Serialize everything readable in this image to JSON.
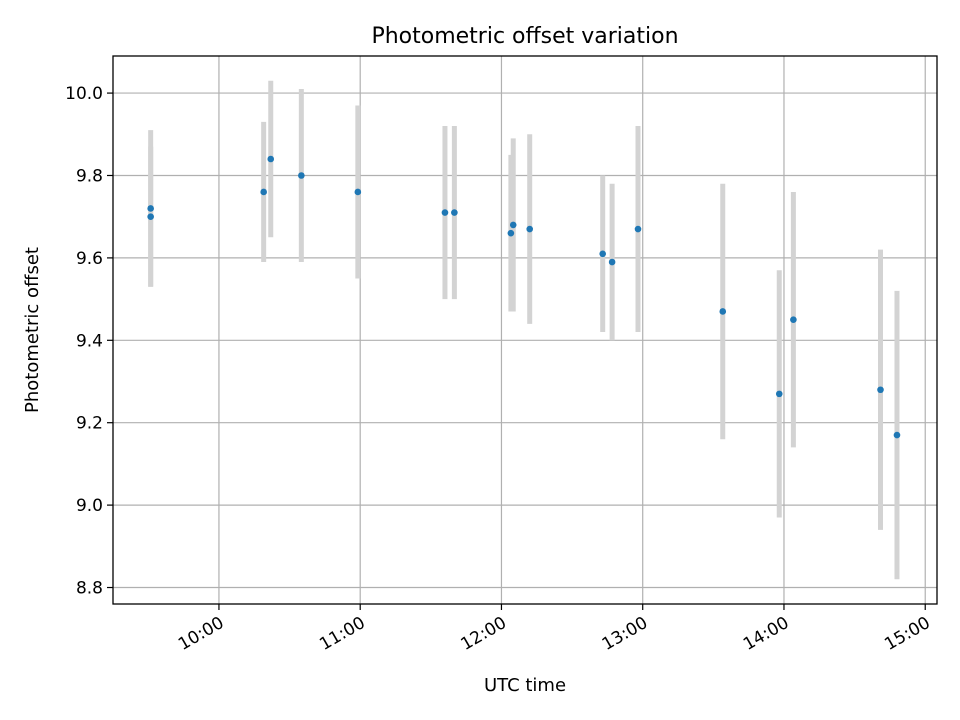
{
  "chart_data": {
    "type": "scatter",
    "title": "Photometric offset variation",
    "xlabel": "UTC time",
    "ylabel": "Photometric offset",
    "xlim": [
      "09:15",
      "15:05"
    ],
    "ylim": [
      8.76,
      10.09
    ],
    "grid": true,
    "x_ticks": [
      "10:00",
      "11:00",
      "12:00",
      "13:00",
      "14:00",
      "15:00"
    ],
    "y_ticks": [
      "8.8",
      "9.0",
      "9.2",
      "9.4",
      "9.6",
      "9.8",
      "10.0"
    ],
    "error_bar_color": "#d3d3d3",
    "marker_color": "#1f77b4",
    "points": [
      {
        "x": "09:31",
        "y": 9.72,
        "err": 0.19
      },
      {
        "x": "09:31",
        "y": 9.7,
        "err": 0.17
      },
      {
        "x": "10:19",
        "y": 9.76,
        "err": 0.17
      },
      {
        "x": "10:22",
        "y": 9.84,
        "err": 0.19
      },
      {
        "x": "10:35",
        "y": 9.8,
        "err": 0.21
      },
      {
        "x": "10:59",
        "y": 9.76,
        "err": 0.21
      },
      {
        "x": "11:36",
        "y": 9.71,
        "err": 0.21
      },
      {
        "x": "11:40",
        "y": 9.71,
        "err": 0.21
      },
      {
        "x": "12:04",
        "y": 9.66,
        "err": 0.19
      },
      {
        "x": "12:05",
        "y": 9.68,
        "err": 0.21
      },
      {
        "x": "12:12",
        "y": 9.67,
        "err": 0.23
      },
      {
        "x": "12:43",
        "y": 9.61,
        "err": 0.19
      },
      {
        "x": "12:47",
        "y": 9.59,
        "err": 0.19
      },
      {
        "x": "12:58",
        "y": 9.67,
        "err": 0.25
      },
      {
        "x": "13:34",
        "y": 9.47,
        "err": 0.31
      },
      {
        "x": "13:58",
        "y": 9.27,
        "err": 0.3
      },
      {
        "x": "14:04",
        "y": 9.45,
        "err": 0.31
      },
      {
        "x": "14:41",
        "y": 9.28,
        "err": 0.34
      },
      {
        "x": "14:48",
        "y": 9.17,
        "err": 0.35
      }
    ]
  }
}
